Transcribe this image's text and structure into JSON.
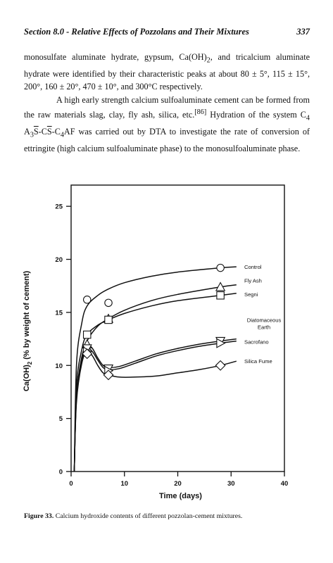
{
  "header": {
    "title": "Section 8.0 - Relative Effects of Pozzolans and Their Mixtures",
    "page_number": "337"
  },
  "body": {
    "p1": {
      "before": "monosulfate aluminate hydrate, gypsum, Ca(OH)",
      "sub": "2",
      "after": ", and tricalcium aluminate hydrate were identified by their characteristic peaks at about 80 ± 5°, 115 ± 15°, 200°, 160 ± 20°, 470 ± 10°, and 300°C respectively."
    },
    "p2": {
      "a": "A high early strength calcium sulfoaluminate cement can be formed from the raw materials slag, clay, fly ash, silica, etc.",
      "ref": "[86]",
      "b": " Hydration of the system C",
      "s1": "4",
      "c": " A",
      "s2": "3",
      "d": "S",
      "e": "-C",
      "f": "S",
      "g": "-C",
      "s3": "4",
      "h": "AF was carried out by DTA to investigate the rate of conversion of ettringite (high calcium sulfoaluminate phase) to the monosulfoaluminate phase."
    }
  },
  "caption": {
    "label": "Figure 33.",
    "text": " Calcium hydroxide contents of different pozzolan-cement mixtures."
  },
  "chart_data": {
    "type": "line",
    "title": "",
    "xlabel": "Time (days)",
    "ylabel": "Ca(OH)2 (% by weight of cement)",
    "xlim": [
      0,
      40
    ],
    "ylim": [
      0,
      27
    ],
    "xticks": [
      0,
      10,
      20,
      30,
      40
    ],
    "yticks": [
      0,
      5,
      10,
      15,
      20,
      25
    ],
    "grid": false,
    "series": [
      {
        "name": "Control",
        "marker": "circle",
        "points": [
          [
            3,
            16.2
          ],
          [
            7,
            15.9
          ],
          [
            28,
            19.2
          ]
        ],
        "curve": [
          [
            0.6,
            0
          ],
          [
            1,
            10
          ],
          [
            2,
            14
          ],
          [
            3,
            15.6
          ],
          [
            5,
            16.6
          ],
          [
            7,
            17.2
          ],
          [
            10,
            17.8
          ],
          [
            15,
            18.4
          ],
          [
            20,
            18.8
          ],
          [
            28,
            19.2
          ],
          [
            31,
            19.3
          ]
        ]
      },
      {
        "name": "Fly Ash",
        "marker": "triangle",
        "points": [
          [
            3,
            12.0
          ],
          [
            7,
            14.4
          ],
          [
            28,
            17.4
          ]
        ],
        "curve": [
          [
            0.6,
            0
          ],
          [
            1,
            7
          ],
          [
            2,
            10.5
          ],
          [
            3,
            12.3
          ],
          [
            5,
            13.7
          ],
          [
            7,
            14.4
          ],
          [
            10,
            15.2
          ],
          [
            15,
            16.1
          ],
          [
            20,
            16.7
          ],
          [
            28,
            17.4
          ],
          [
            31,
            17.6
          ]
        ]
      },
      {
        "name": "Segni",
        "marker": "square",
        "points": [
          [
            3,
            12.9
          ],
          [
            7,
            14.3
          ],
          [
            28,
            16.6
          ]
        ],
        "curve": [
          [
            0.6,
            0
          ],
          [
            1,
            8
          ],
          [
            2,
            11.5
          ],
          [
            3,
            12.9
          ],
          [
            5,
            13.8
          ],
          [
            7,
            14.3
          ],
          [
            10,
            14.9
          ],
          [
            15,
            15.6
          ],
          [
            20,
            16.1
          ],
          [
            28,
            16.6
          ],
          [
            31,
            16.8
          ]
        ]
      },
      {
        "name": "Diatomaceous Earth",
        "marker": "triangle-down",
        "points": [
          [
            3,
            11.6
          ],
          [
            7,
            9.7
          ],
          [
            28,
            12.3
          ]
        ],
        "curve": [
          [
            0.6,
            0
          ],
          [
            1,
            7
          ],
          [
            2,
            10.8
          ],
          [
            3,
            11.9
          ],
          [
            4,
            11.6
          ],
          [
            5,
            10.7
          ],
          [
            6,
            10.0
          ],
          [
            7,
            9.8
          ],
          [
            9,
            9.9
          ],
          [
            12,
            10.4
          ],
          [
            16,
            11.1
          ],
          [
            20,
            11.6
          ],
          [
            24,
            12.0
          ],
          [
            28,
            12.3
          ],
          [
            31,
            12.5
          ]
        ]
      },
      {
        "name": "Sacrofano",
        "marker": "triangle-right",
        "points": [
          [
            3,
            11.3
          ],
          [
            7,
            9.5
          ],
          [
            28,
            12.1
          ]
        ],
        "curve": [
          [
            0.6,
            0
          ],
          [
            1,
            6.8
          ],
          [
            2,
            10.4
          ],
          [
            3,
            11.6
          ],
          [
            4,
            11.3
          ],
          [
            5,
            10.5
          ],
          [
            6,
            9.8
          ],
          [
            7,
            9.6
          ],
          [
            9,
            9.7
          ],
          [
            12,
            10.2
          ],
          [
            16,
            10.9
          ],
          [
            20,
            11.4
          ],
          [
            24,
            11.8
          ],
          [
            28,
            12.1
          ],
          [
            31,
            12.3
          ]
        ]
      },
      {
        "name": "Silica Fume",
        "marker": "diamond",
        "points": [
          [
            3,
            11.1
          ],
          [
            7,
            9.1
          ],
          [
            28,
            10.0
          ]
        ],
        "curve": [
          [
            0.6,
            0
          ],
          [
            1,
            6.5
          ],
          [
            2,
            10.2
          ],
          [
            3,
            11.3
          ],
          [
            4,
            10.9
          ],
          [
            5,
            10.0
          ],
          [
            6,
            9.3
          ],
          [
            7,
            9.1
          ],
          [
            9,
            8.9
          ],
          [
            12,
            8.9
          ],
          [
            16,
            9.0
          ],
          [
            20,
            9.3
          ],
          [
            24,
            9.6
          ],
          [
            28,
            10.0
          ],
          [
            31,
            10.4
          ]
        ]
      }
    ]
  }
}
